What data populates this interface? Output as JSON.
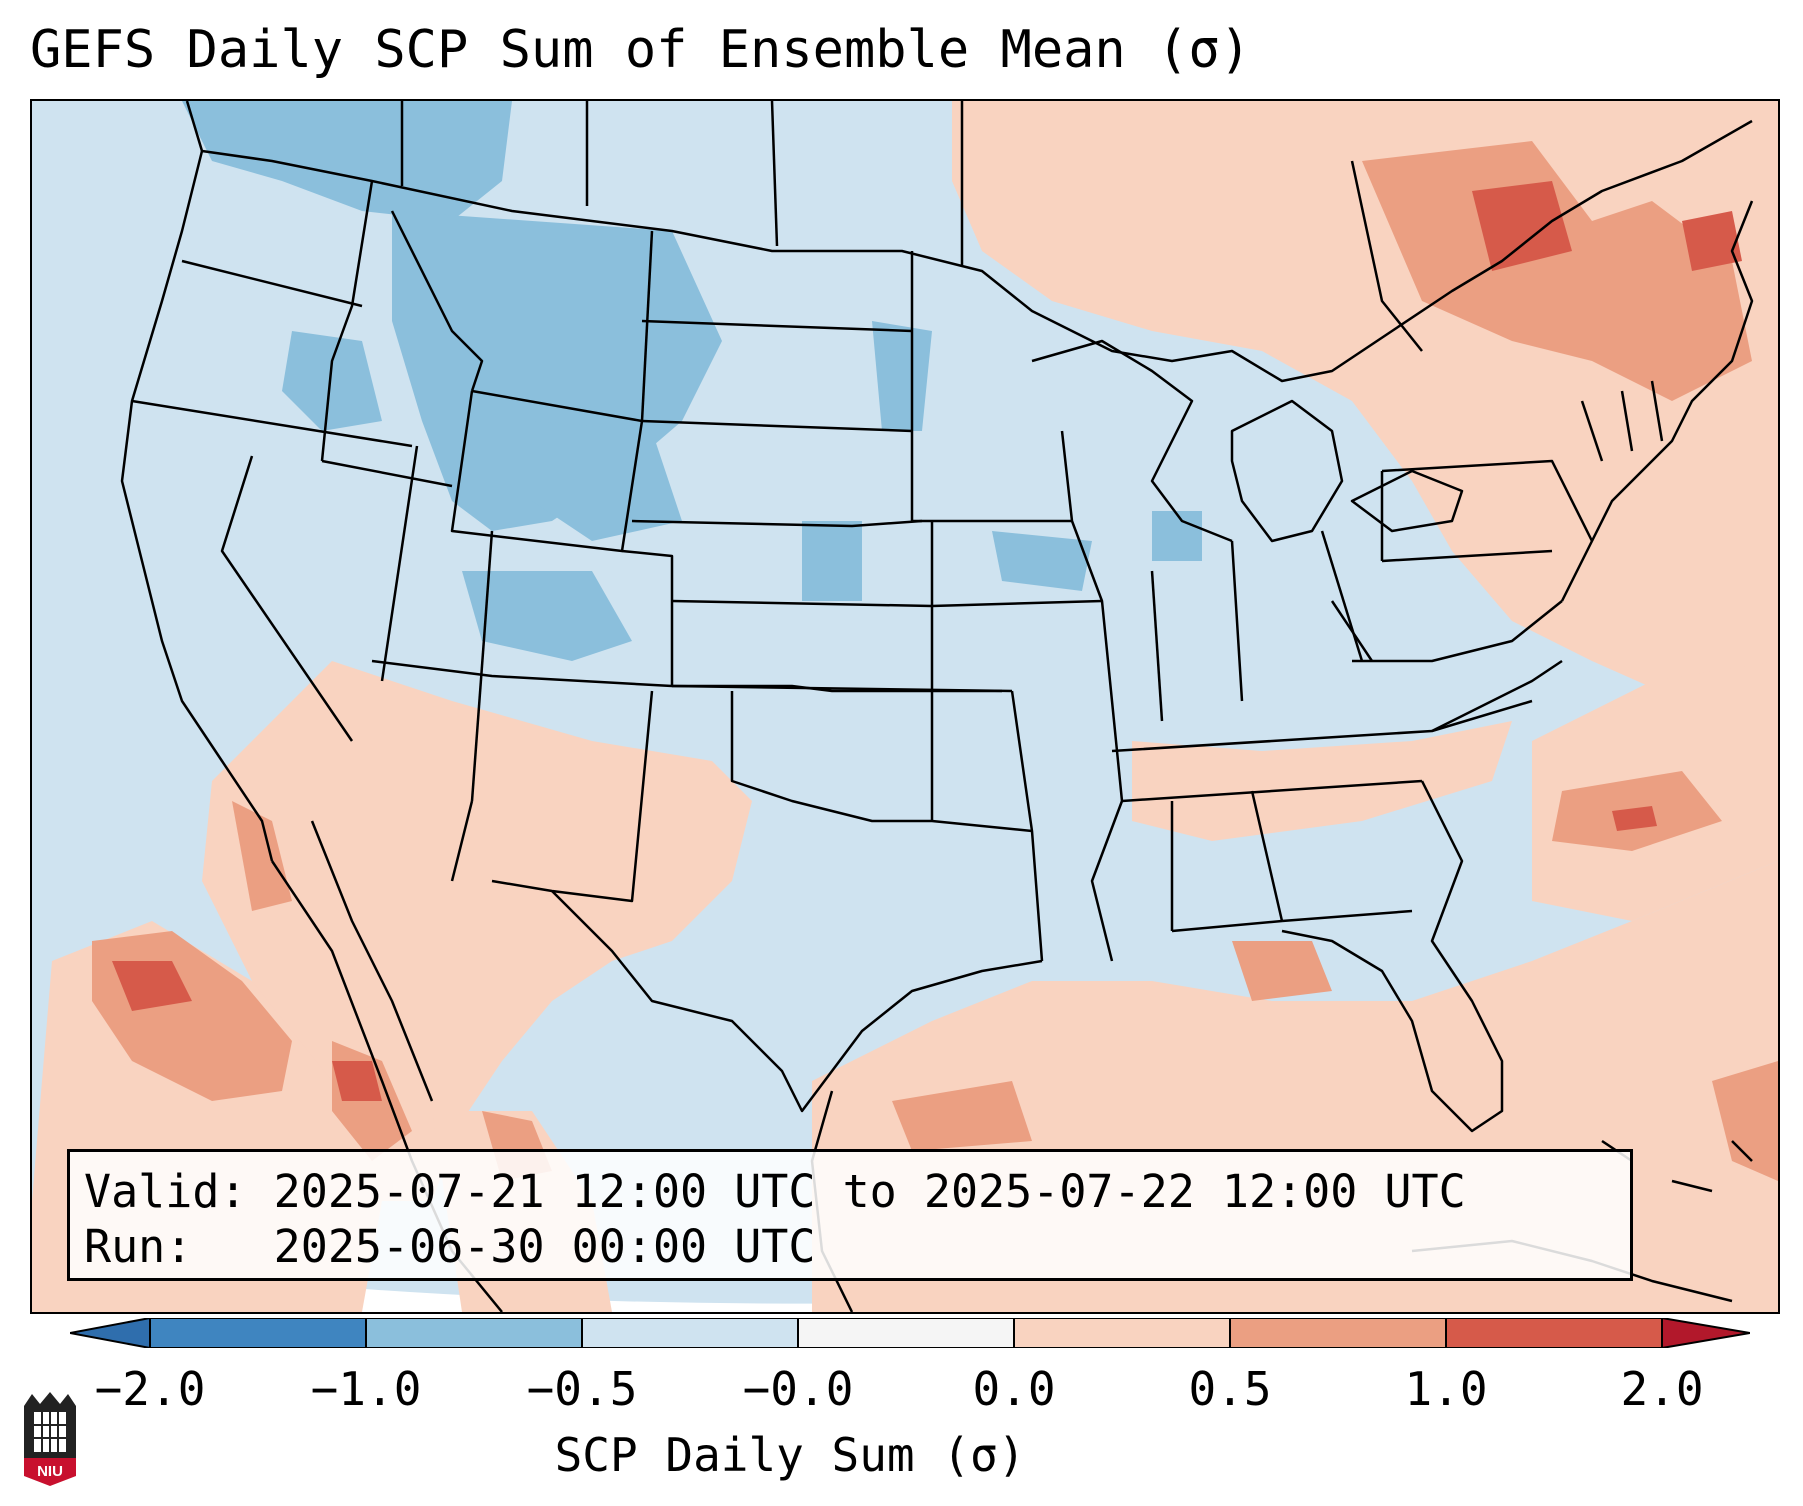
{
  "title": "GEFS Daily SCP Sum of Ensemble Mean (σ)",
  "info": {
    "valid_line": "Valid: 2025-07-21 12:00 UTC to 2025-07-22 12:00 UTC",
    "run_line": "Run:   2025-06-30 00:00 UTC"
  },
  "colorbar": {
    "label": "SCP Daily Sum (σ)",
    "ticks": [
      "−2.0",
      "−1.0",
      "−0.5",
      "−0.0",
      "0.0",
      "0.5",
      "1.0",
      "2.0"
    ],
    "colors": [
      "#3f85c0",
      "#8bbfdc",
      "#cfe3f0",
      "#f5f5f5",
      "#f9d3c0",
      "#eb9f82",
      "#d65a4a",
      "#b2182b"
    ],
    "extend_low_color": "#2f6ead",
    "extend_high_color": "#b2182b"
  },
  "logo": {
    "text": "NIU"
  },
  "map": {
    "projection": "Lambert Conformal",
    "region": "CONUS"
  }
}
